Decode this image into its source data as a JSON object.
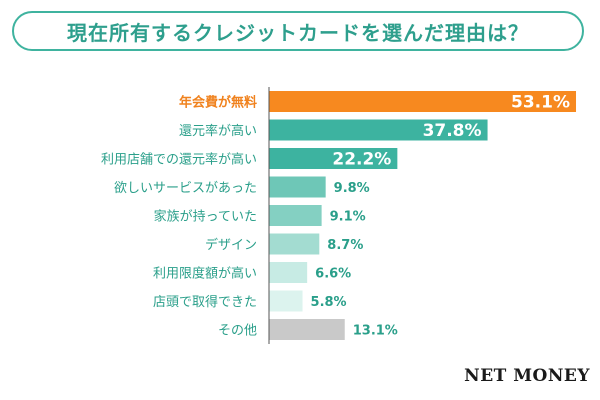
{
  "title": "現在所有するクレジットカードを選んだ理由は？",
  "brand": {
    "name": "NET MONEY"
  },
  "colors": {
    "highlight": "#f7891f",
    "bars": [
      "#f7891f",
      "#3db3a0",
      "#3db3a0",
      "#6ec7b7",
      "#84d0c2",
      "#a3dcd1",
      "#c7ebe4",
      "#dcf3ee",
      "#c9c9c9"
    ],
    "axis": "#555555"
  },
  "chart_data": {
    "type": "bar",
    "orientation": "horizontal",
    "title": "現在所有するクレジットカードを選んだ理由は？",
    "categories": [
      "年会費が無料",
      "還元率が高い",
      "利用店舗での還元率が高い",
      "欲しいサービスがあった",
      "家族が持っていた",
      "デザイン",
      "利用限度額が高い",
      "店頭で取得できた",
      "その他"
    ],
    "values": [
      53.1,
      37.8,
      22.2,
      9.8,
      9.1,
      8.7,
      6.6,
      5.8,
      13.1
    ],
    "value_labels": [
      "53.1%",
      "37.8%",
      "22.2%",
      "9.8%",
      "9.1%",
      "8.7%",
      "6.6%",
      "5.8%",
      "13.1%"
    ],
    "unit": "%",
    "xlim": [
      0,
      55
    ]
  }
}
